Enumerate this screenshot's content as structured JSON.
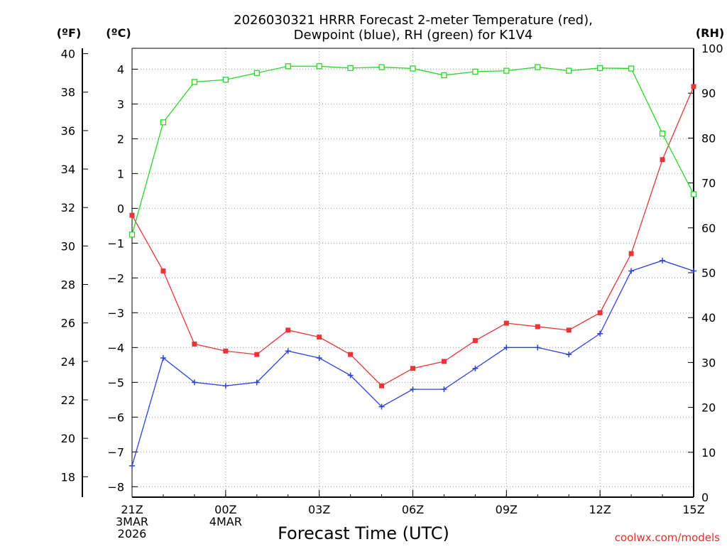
{
  "chart_data": {
    "type": "line",
    "title_lines": [
      "2026030321 HRRR Forecast 2-meter Temperature (red),",
      "Dewpoint (blue), RH (green) for K1V4"
    ],
    "xlabel": "Forecast Time (UTC)",
    "credit": "coolwx.com/models",
    "units": {
      "fahrenheit": "(ºF)",
      "celsius": "(ºC)",
      "rh": "(RH)"
    },
    "x_hours": [
      0,
      1,
      2,
      3,
      4,
      5,
      6,
      7,
      8,
      9,
      10,
      11,
      12,
      13,
      14,
      15,
      16,
      17,
      18
    ],
    "x_tick_labels": [
      {
        "hour": 0,
        "lines": [
          "21Z",
          "3MAR",
          "2026"
        ]
      },
      {
        "hour": 3,
        "lines": [
          "00Z",
          "4MAR"
        ]
      },
      {
        "hour": 6,
        "lines": [
          "03Z"
        ]
      },
      {
        "hour": 9,
        "lines": [
          "06Z"
        ]
      },
      {
        "hour": 12,
        "lines": [
          "09Z"
        ]
      },
      {
        "hour": 15,
        "lines": [
          "12Z"
        ]
      },
      {
        "hour": 18,
        "lines": [
          "15Z"
        ]
      }
    ],
    "celsius_axis": {
      "min": -8.3,
      "max": 4.6,
      "ticks": [
        -8,
        -7,
        -6,
        -5,
        -4,
        -3,
        -2,
        -1,
        0,
        1,
        2,
        3,
        4
      ]
    },
    "fahrenheit_axis": {
      "min": 16.94,
      "max": 40.28,
      "ticks": [
        18,
        20,
        22,
        24,
        26,
        28,
        30,
        32,
        34,
        36,
        38,
        40
      ]
    },
    "rh_axis": {
      "min": 0,
      "max": 100,
      "ticks": [
        0,
        10,
        20,
        30,
        40,
        50,
        60,
        70,
        80,
        90,
        100
      ]
    },
    "series": [
      {
        "name": "Temperature",
        "axis": "celsius",
        "color": "#e8353a",
        "marker": "filled-square",
        "values": [
          -0.2,
          -1.8,
          -3.9,
          -4.1,
          -4.2,
          -3.5,
          -3.7,
          -4.2,
          -5.1,
          -4.6,
          -4.4,
          -3.8,
          -3.3,
          -3.4,
          -3.5,
          -3.0,
          -1.3,
          1.4,
          3.5
        ]
      },
      {
        "name": "Dewpoint",
        "axis": "celsius",
        "color": "#2b40e0",
        "marker": "plus",
        "values": [
          -7.4,
          -4.3,
          -5.0,
          -5.1,
          -5.0,
          -4.1,
          -4.3,
          -4.8,
          -5.7,
          -5.2,
          -5.2,
          -4.6,
          -4.0,
          -4.0,
          -4.2,
          -3.6,
          -1.8,
          -1.5,
          -1.8
        ]
      },
      {
        "name": "Relative Humidity",
        "axis": "rh",
        "color": "#2ad62a",
        "marker": "open-square",
        "values": [
          58.5,
          83.5,
          92.5,
          93.0,
          94.5,
          96.0,
          96.0,
          95.6,
          95.8,
          95.5,
          94.0,
          94.8,
          95.0,
          95.8,
          95.0,
          95.6,
          95.5,
          81.0,
          67.5
        ]
      }
    ]
  }
}
